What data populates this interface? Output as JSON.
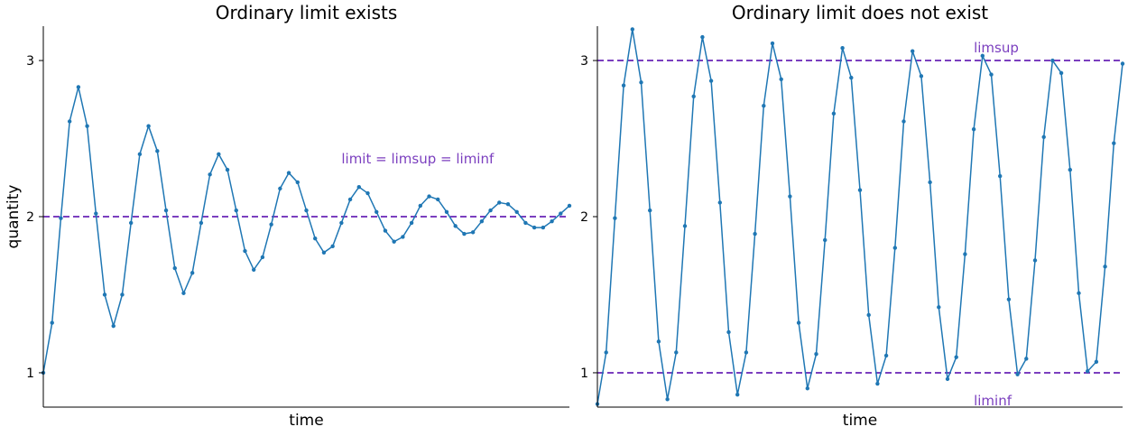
{
  "colors": {
    "series": "#1f77b4",
    "reference": "#7b3fbf",
    "axis": "#000000"
  },
  "chart_data": [
    {
      "type": "line",
      "title": "Ordinary limit exists",
      "xlabel": "time",
      "ylabel": "quantity",
      "xlim": [
        0,
        60
      ],
      "ylim": [
        0.78,
        3.22
      ],
      "yticks": [
        1,
        2,
        3
      ],
      "grid": false,
      "series": [
        {
          "x": [
            0,
            1,
            2,
            3,
            4,
            5,
            6,
            7,
            8,
            9,
            10,
            11,
            12,
            13,
            14,
            15,
            16,
            17,
            18,
            19,
            20,
            21,
            22,
            23,
            24,
            25,
            26,
            27,
            28,
            29,
            30,
            31,
            32,
            33,
            34,
            35,
            36,
            37,
            38,
            39,
            40,
            41,
            42,
            43,
            44,
            45,
            46,
            47,
            48,
            49,
            50,
            51,
            52,
            53,
            54,
            55,
            56,
            57,
            58,
            59,
            60
          ],
          "values": [
            1.0,
            1.32,
            1.99,
            2.61,
            2.83,
            2.58,
            2.02,
            1.5,
            1.3,
            1.5,
            1.96,
            2.4,
            2.58,
            2.42,
            2.04,
            1.67,
            1.51,
            1.64,
            1.96,
            2.27,
            2.4,
            2.3,
            2.04,
            1.78,
            1.66,
            1.74,
            1.95,
            2.18,
            2.28,
            2.22,
            2.04,
            1.86,
            1.77,
            1.81,
            1.96,
            2.11,
            2.19,
            2.15,
            2.03,
            1.91,
            1.84,
            1.87,
            1.96,
            2.07,
            2.13,
            2.11,
            2.03,
            1.94,
            1.89,
            1.9,
            1.97,
            2.04,
            2.09,
            2.08,
            2.03,
            1.96,
            1.93,
            1.93,
            1.97,
            2.02,
            2.07
          ]
        }
      ],
      "reference_lines": [
        {
          "y": 2,
          "label": "limit = limsup = liminf",
          "label_x": 34,
          "label_y": 2.37
        }
      ]
    },
    {
      "type": "line",
      "title": "Ordinary limit does not exist",
      "xlabel": "time",
      "ylabel": "",
      "xlim": [
        0,
        60
      ],
      "ylim": [
        0.78,
        3.22
      ],
      "yticks": [
        1,
        2,
        3
      ],
      "grid": false,
      "series": [
        {
          "x": [
            0,
            1,
            2,
            3,
            4,
            5,
            6,
            7,
            8,
            9,
            10,
            11,
            12,
            13,
            14,
            15,
            16,
            17,
            18,
            19,
            20,
            21,
            22,
            23,
            24,
            25,
            26,
            27,
            28,
            29,
            30,
            31,
            32,
            33,
            34,
            35,
            36,
            37,
            38,
            39,
            40,
            41,
            42,
            43,
            44,
            45,
            46,
            47,
            48,
            49,
            50,
            51,
            52,
            53,
            54,
            55,
            56,
            57,
            58,
            59,
            60
          ],
          "values": [
            0.8,
            1.13,
            1.99,
            2.84,
            3.2,
            2.86,
            2.04,
            1.2,
            0.83,
            1.13,
            1.94,
            2.77,
            3.15,
            2.87,
            2.09,
            1.26,
            0.86,
            1.13,
            1.89,
            2.71,
            3.11,
            2.88,
            2.13,
            1.32,
            0.9,
            1.12,
            1.85,
            2.66,
            3.08,
            2.89,
            2.17,
            1.37,
            0.93,
            1.11,
            1.8,
            2.61,
            3.06,
            2.9,
            2.22,
            1.42,
            0.96,
            1.1,
            1.76,
            2.56,
            3.03,
            2.91,
            2.26,
            1.47,
            0.99,
            1.09,
            1.72,
            2.51,
            3.0,
            2.92,
            2.3,
            1.51,
            1.01,
            1.07,
            1.68,
            2.47,
            2.98
          ]
        }
      ],
      "reference_lines": [
        {
          "y": 3,
          "label": "limsup",
          "label_x": 43,
          "label_y": 3.08
        },
        {
          "y": 1,
          "label": "liminf",
          "label_x": 43,
          "label_y": 0.82
        }
      ]
    }
  ]
}
